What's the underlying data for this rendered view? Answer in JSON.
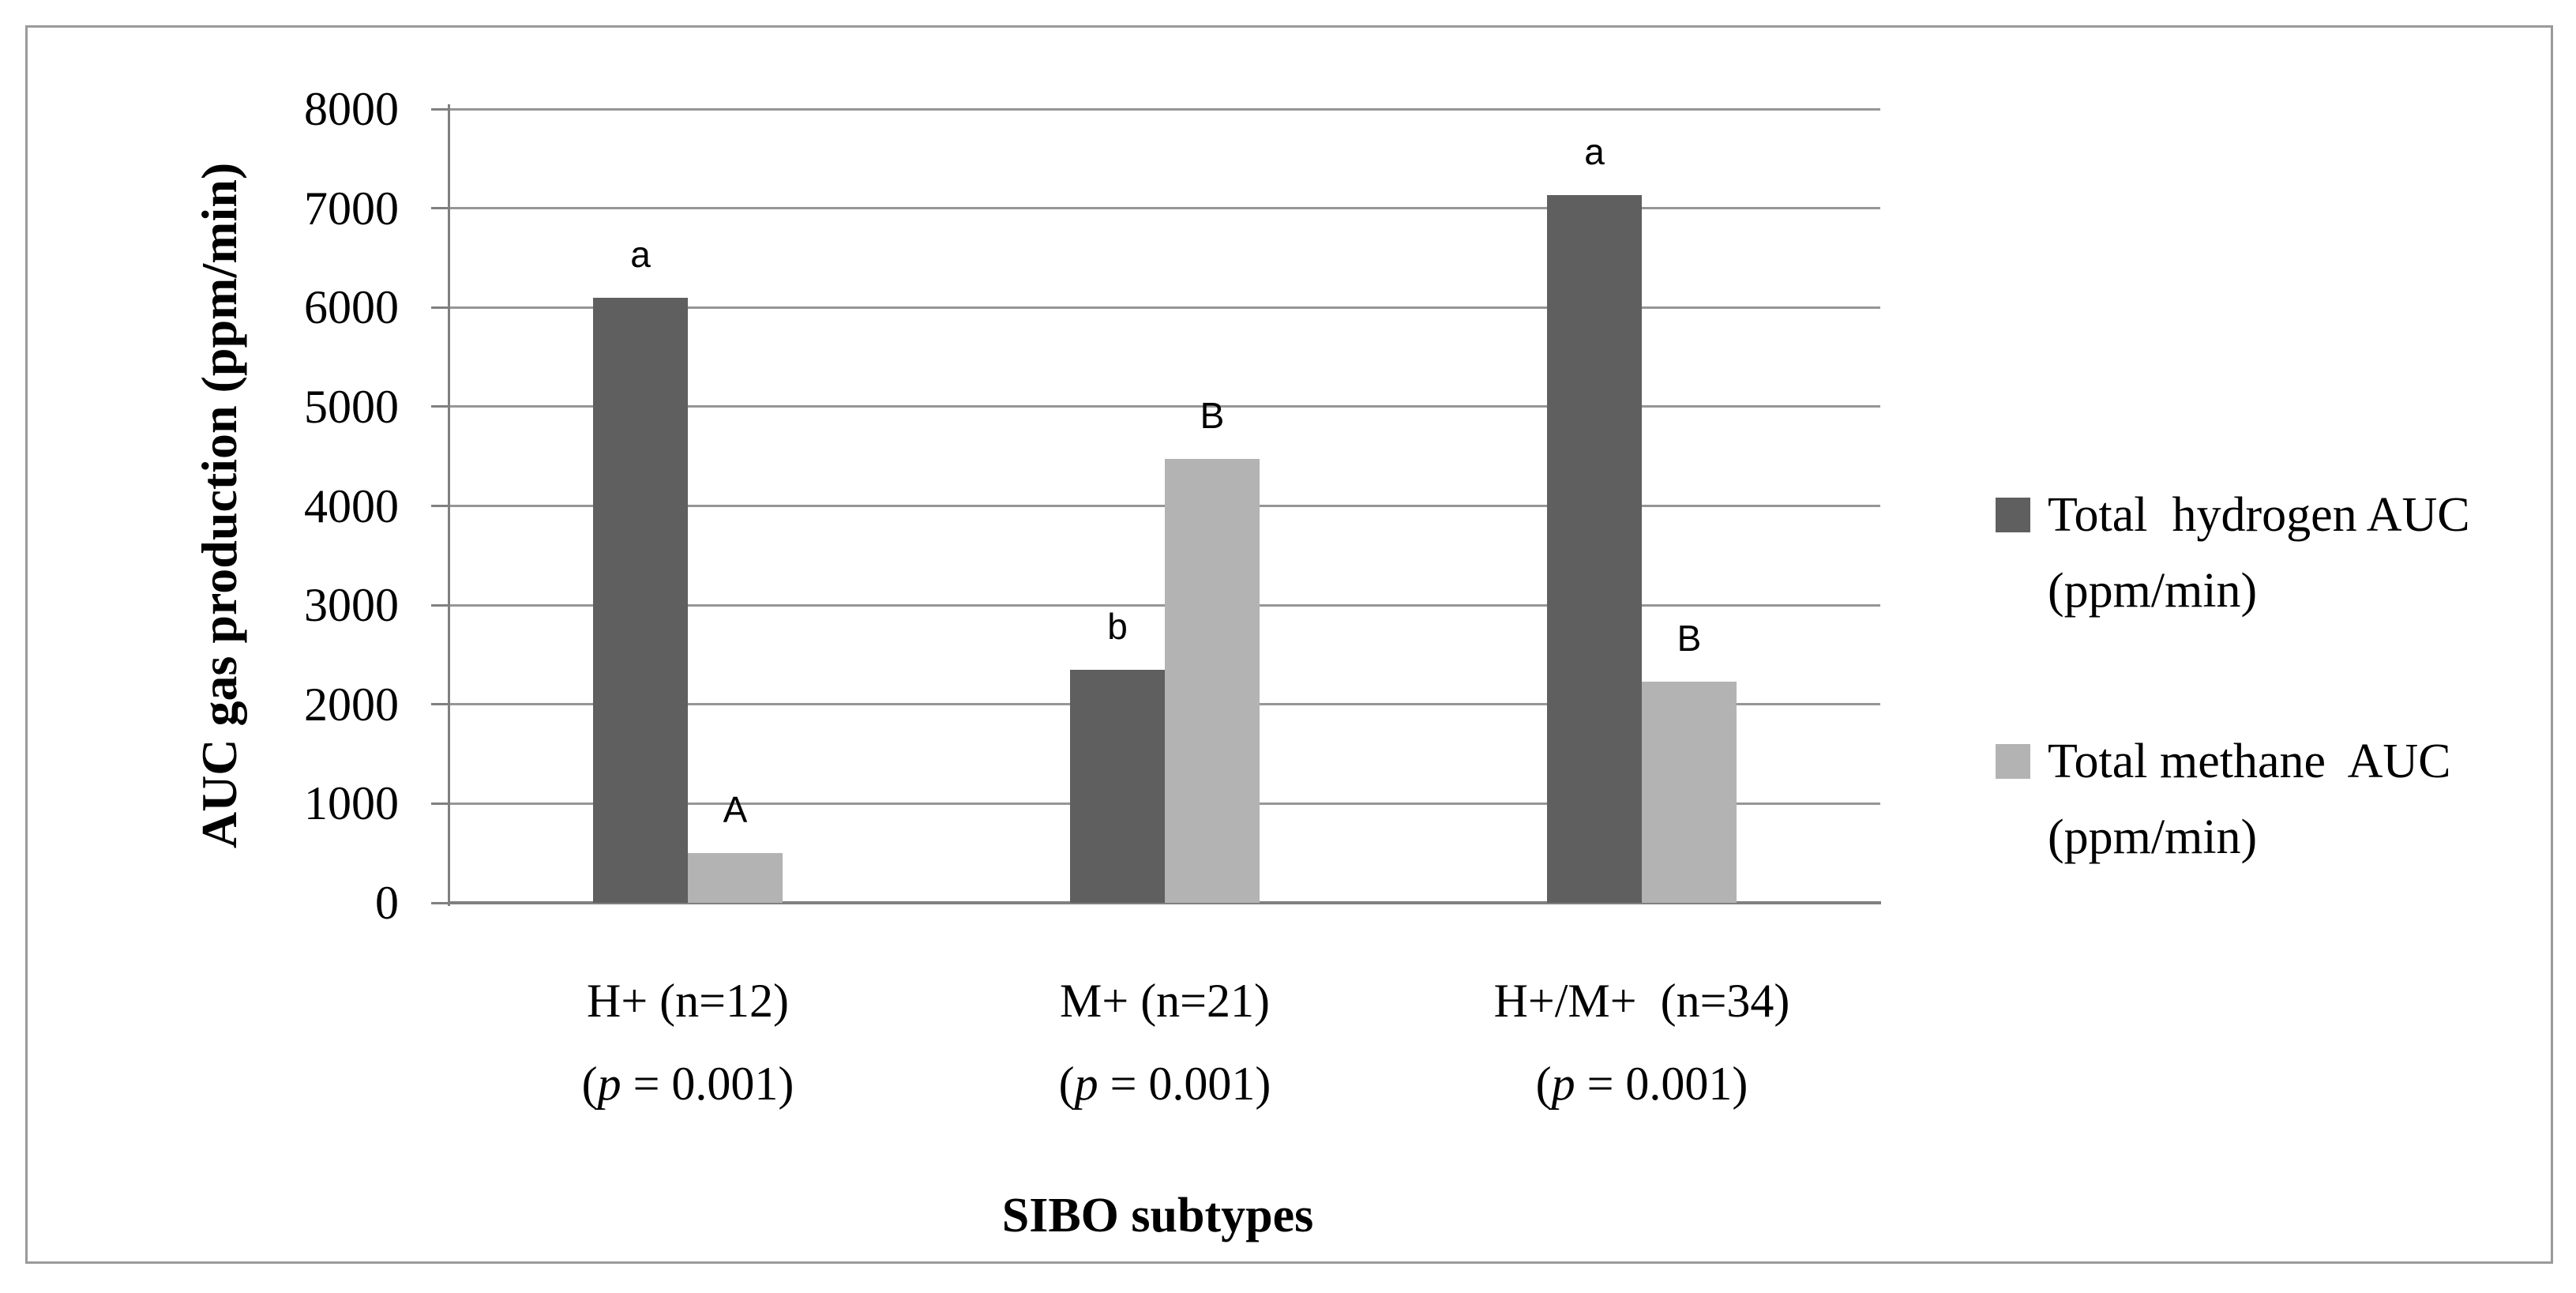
{
  "figure": {
    "y_axis_title": "AUC gas production (ppm/min)",
    "x_axis_title": "SIBO subtypes"
  },
  "legend": {
    "position": "right",
    "items": [
      {
        "line1": "Total  hydrogen AUC",
        "line2": "(ppm/min)",
        "color": "#5f5f5f"
      },
      {
        "line1": "Total methane  AUC",
        "line2": "(ppm/min)",
        "color": "#b3b3b3"
      }
    ]
  },
  "colors": {
    "hydrogen_bar": "#5f5f5f",
    "methane_bar": "#b3b3b3",
    "gridline": "#969696",
    "axis_line": "#808080",
    "figure_border": "#9a9a9a",
    "text": "#000000"
  },
  "chart_data": {
    "type": "bar",
    "title": "",
    "xlabel": "SIBO subtypes",
    "ylabel": "AUC gas production (ppm/min)",
    "ylim": [
      0,
      8000
    ],
    "yticks": [
      0,
      1000,
      2000,
      3000,
      4000,
      5000,
      6000,
      7000,
      8000
    ],
    "grid": true,
    "legend_position": "right",
    "categories": [
      "H+ (n=12)",
      "M+ (n=21)",
      "H+/M+  (n=34)"
    ],
    "category_p_labels": [
      {
        "open": "(",
        "italic": "p",
        "rest": " = 0.001)"
      },
      {
        "open": "(",
        "italic": "p",
        "rest": " = 0.001)"
      },
      {
        "open": "(",
        "italic": "p",
        "rest": " = 0.001)"
      }
    ],
    "series": [
      {
        "name": "Total hydrogen AUC (ppm/min)",
        "color": "#5f5f5f",
        "values": [
          6100,
          2350,
          7130
        ],
        "significance_letters": [
          "a",
          "b",
          "a"
        ]
      },
      {
        "name": "Total methane AUC (ppm/min)",
        "color": "#b3b3b3",
        "values": [
          500,
          4470,
          2230
        ],
        "significance_letters": [
          "A",
          "B",
          "B"
        ]
      }
    ]
  }
}
